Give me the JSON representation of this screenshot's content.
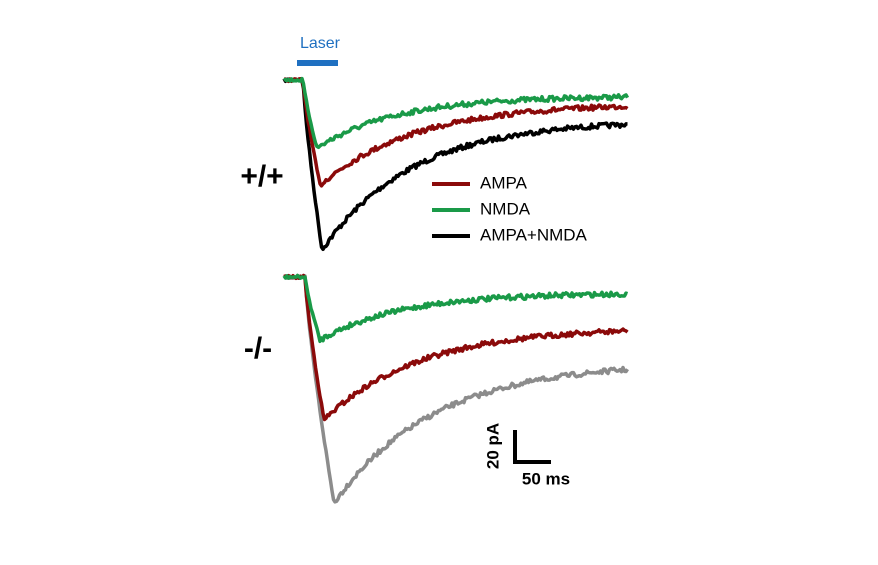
{
  "laser": "Laser",
  "panels": [
    {
      "genotype": "+/+"
    },
    {
      "genotype": "-/-"
    }
  ],
  "legend": [
    {
      "label": "AMPA",
      "color": "#8b0a0a"
    },
    {
      "label": "NMDA",
      "color": "#1a9a48"
    },
    {
      "label": "AMPA+NMDA",
      "color": "#000000"
    }
  ],
  "scale_bar": {
    "vertical": "20 pA",
    "horizontal": "50 ms"
  }
}
